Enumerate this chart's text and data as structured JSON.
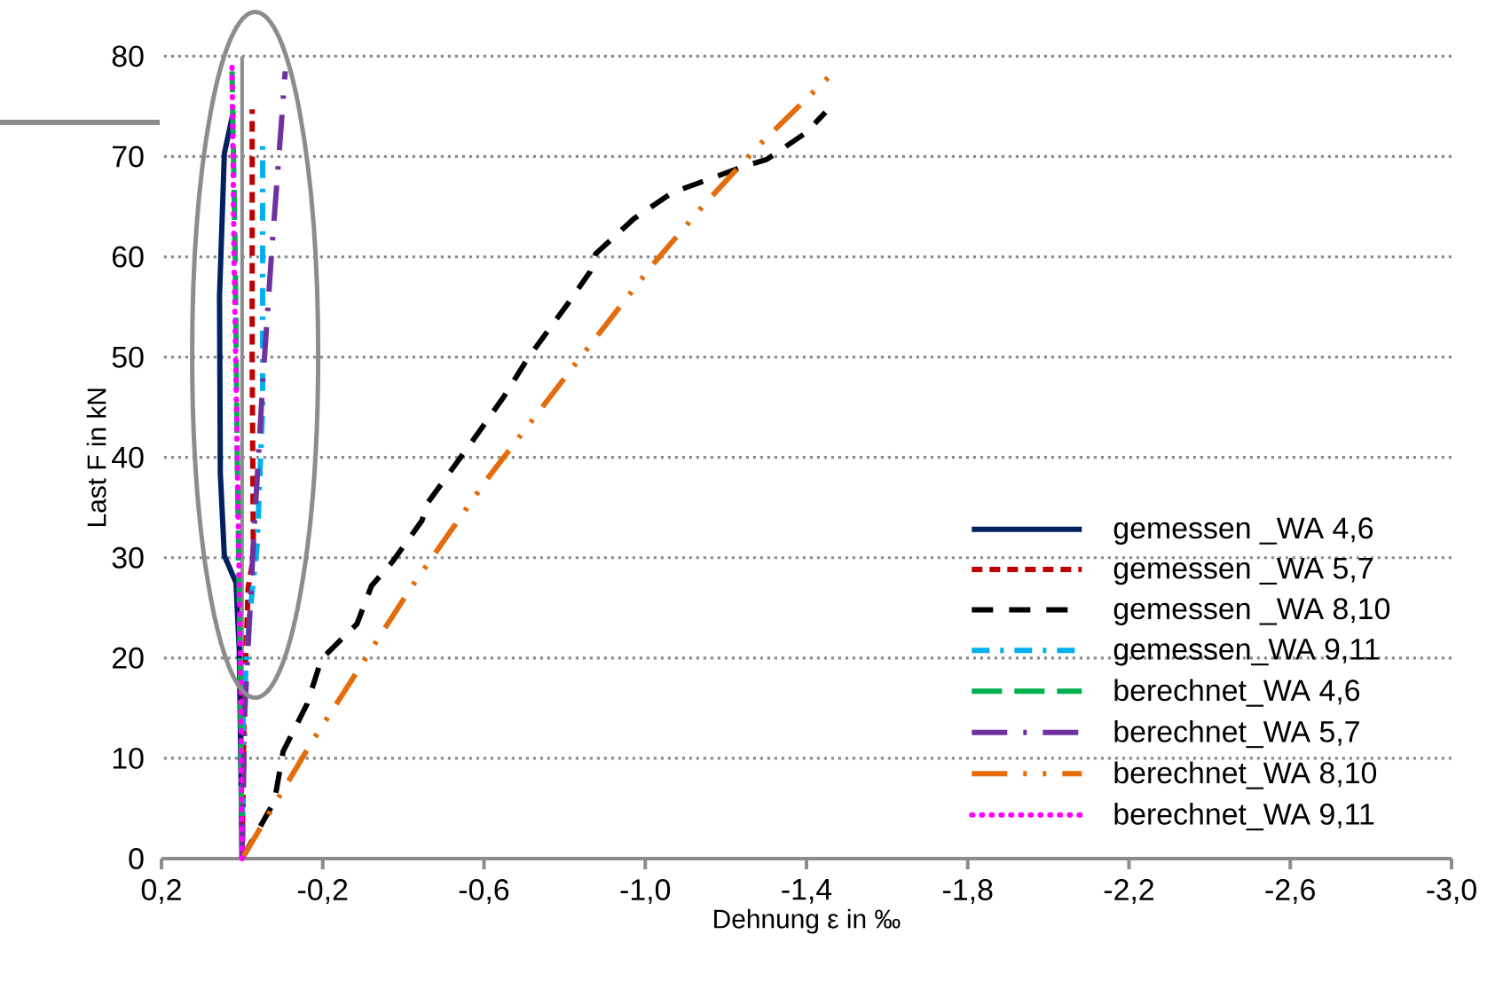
{
  "chart_data": {
    "type": "line",
    "xlabel": "Dehnung ε in ‰",
    "ylabel": "Last  F in kN",
    "xlim": [
      0.2,
      -3.0
    ],
    "ylim": [
      0,
      80
    ],
    "xticks": [
      {
        "value": 0.2,
        "label": "0,2"
      },
      {
        "value": -0.2,
        "label": "-0,2"
      },
      {
        "value": -0.6,
        "label": "-0,6"
      },
      {
        "value": -1.0,
        "label": "-1,0"
      },
      {
        "value": -1.4,
        "label": "-1,4"
      },
      {
        "value": -1.8,
        "label": "-1,8"
      },
      {
        "value": -2.2,
        "label": "-2,2"
      },
      {
        "value": -2.6,
        "label": "-2,6"
      },
      {
        "value": -3.0,
        "label": "-3,0"
      }
    ],
    "yticks": [
      0,
      10,
      20,
      30,
      40,
      50,
      60,
      70,
      80
    ],
    "grid": "y",
    "legend": "bottom right",
    "ref_lines": [
      {
        "axis": "x",
        "value": 0,
        "color": "#8c8c8c"
      }
    ],
    "series": [
      {
        "name": "gemessen _WA 4,6",
        "color": "#002060",
        "line_style": "solid",
        "x": [
          0,
          0.007,
          0.015,
          0.044,
          0.054,
          0.056,
          0.044,
          0.022
        ],
        "values": [
          0,
          20.7,
          27.5,
          30.2,
          38.4,
          56.1,
          70.3,
          74.4
        ]
      },
      {
        "name": "gemessen _WA 5,7",
        "color": "#c00000",
        "line_style": "shortdash",
        "x": [
          0,
          -0.005,
          -0.015,
          -0.028,
          -0.025,
          -0.025
        ],
        "values": [
          0,
          15,
          27,
          30,
          50,
          74.7
        ]
      },
      {
        "name": "gemessen _WA 8,10",
        "color": "#000000",
        "line_style": "dashed",
        "x": [
          0,
          -0.08,
          -0.102,
          -0.161,
          -0.197,
          -0.285,
          -0.321,
          -0.373,
          -0.446,
          -0.461,
          -0.578,
          -0.65,
          -0.709,
          -0.811,
          -0.863,
          -0.877,
          -0.972,
          -1.067,
          -1.25,
          -1.301,
          -1.396,
          -1.447
        ],
        "values": [
          0,
          5.7,
          10.7,
          15.4,
          19.9,
          23.4,
          27.2,
          29.6,
          33.7,
          35.5,
          42.0,
          46.1,
          49.9,
          55.5,
          58.5,
          60.3,
          63.8,
          66.4,
          69.1,
          69.7,
          72.3,
          74.4
        ]
      },
      {
        "name": "gemessen_WA 9,11",
        "color": "#00b0f0",
        "line_style": "dashdot",
        "x": [
          0,
          -0.003,
          -0.018,
          -0.037,
          -0.051,
          -0.051
        ],
        "values": [
          0,
          15,
          24,
          31,
          45,
          71.4
        ]
      },
      {
        "name": "berechnet_WA 4,6",
        "color": "#00b050",
        "line_style": "longdash",
        "x": [
          0,
          0.005,
          0.012,
          0.017,
          0.025
        ],
        "values": [
          0,
          20,
          40,
          60,
          78.5
        ]
      },
      {
        "name": "berechnet_WA 5,7",
        "color": "#7030a0",
        "line_style": "longdashdot",
        "x": [
          0,
          -0.007,
          -0.028,
          -0.051,
          -0.073,
          -0.095,
          -0.107
        ],
        "values": [
          0,
          14.9,
          31.4,
          47.3,
          60.3,
          72.0,
          78.5
        ]
      },
      {
        "name": "berechnet_WA 8,10",
        "color": "#e46c0a",
        "line_style": "longdashdotdot",
        "x": [
          0,
          -0.168,
          -0.417,
          -0.607,
          -0.811,
          -1.016,
          -1.148,
          -1.284,
          -1.462
        ],
        "values": [
          0,
          11.3,
          26.9,
          37.8,
          48.5,
          59.1,
          65.3,
          71.2,
          78.2
        ]
      },
      {
        "name": "berechnet_WA 9,11",
        "color": "#ff00ff",
        "line_style": "dotted",
        "x": [
          0,
          0.004,
          0.012,
          0.02,
          0.025
        ],
        "values": [
          0,
          20,
          40,
          60,
          79.5
        ]
      }
    ]
  }
}
